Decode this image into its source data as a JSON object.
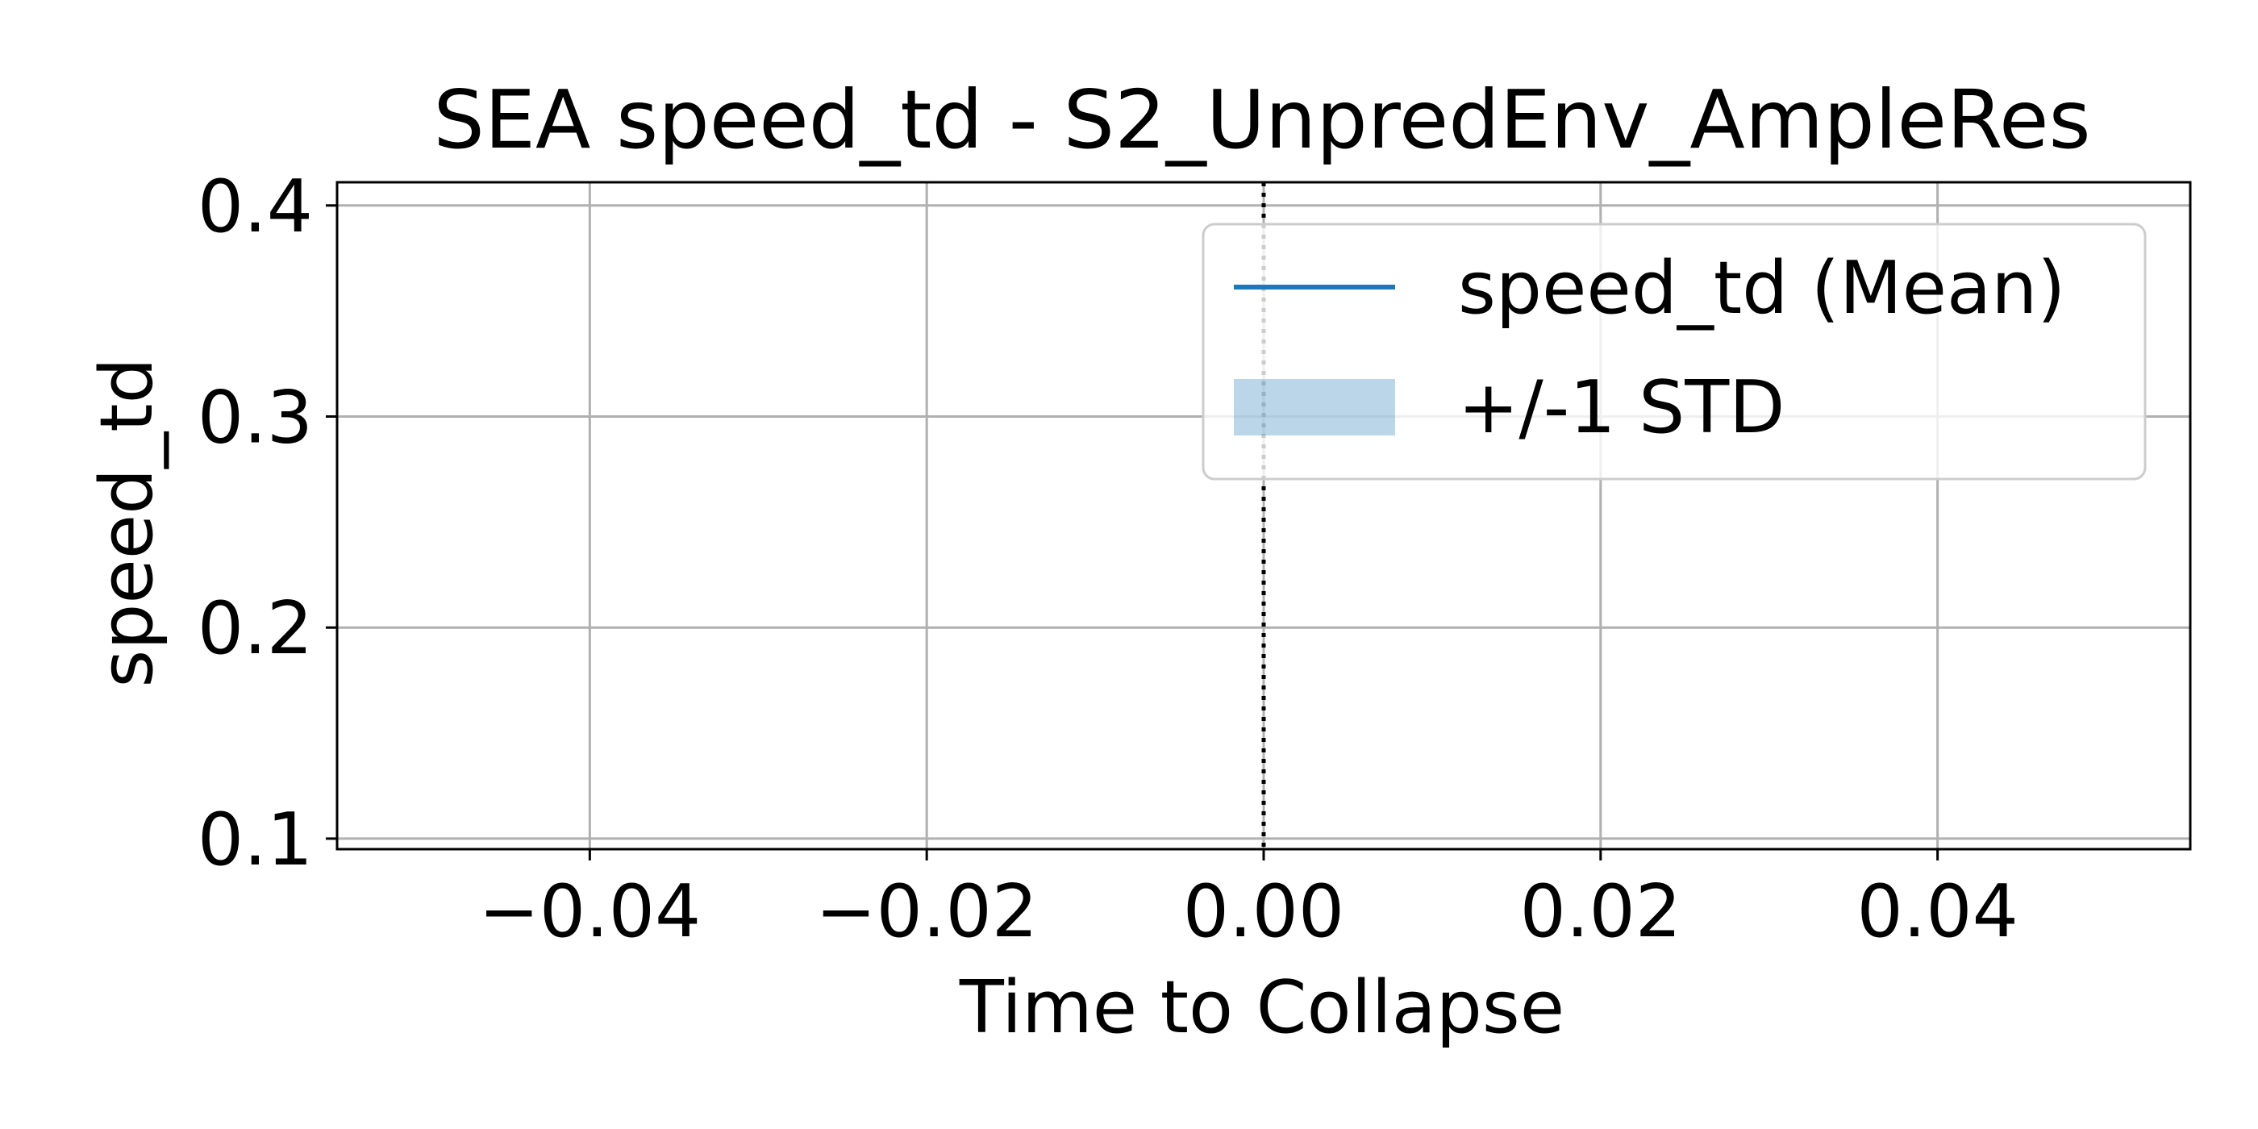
{
  "chart_data": {
    "type": "line",
    "title": "SEA speed_td - S2_UnpredEnv_AmpleRes",
    "xlabel": "Time to Collapse",
    "ylabel": "speed_td",
    "xlim": [
      -0.055,
      0.055
    ],
    "ylim": [
      0.095,
      0.411
    ],
    "xticks": [
      -0.04,
      -0.02,
      0.0,
      0.02,
      0.04
    ],
    "xtick_labels": [
      "−0.04",
      "−0.02",
      "0.00",
      "0.02",
      "0.04"
    ],
    "yticks": [
      0.1,
      0.2,
      0.3,
      0.4
    ],
    "ytick_labels": [
      "0.1",
      "0.2",
      "0.3",
      "0.4"
    ],
    "grid": true,
    "vline": {
      "x": 0.0,
      "style": "dotted",
      "color": "#000000"
    },
    "legend": {
      "placement": "upper right",
      "entries": [
        "speed_td (Mean)",
        "+/-1 STD"
      ]
    },
    "series": [
      {
        "name": "speed_td (Mean)",
        "x": [],
        "y": [],
        "color": "#1f77b4"
      },
      {
        "name": "+/-1 STD",
        "x": [],
        "lower": [],
        "upper": [],
        "color": "#1f77b4",
        "alpha": 0.3
      }
    ]
  }
}
